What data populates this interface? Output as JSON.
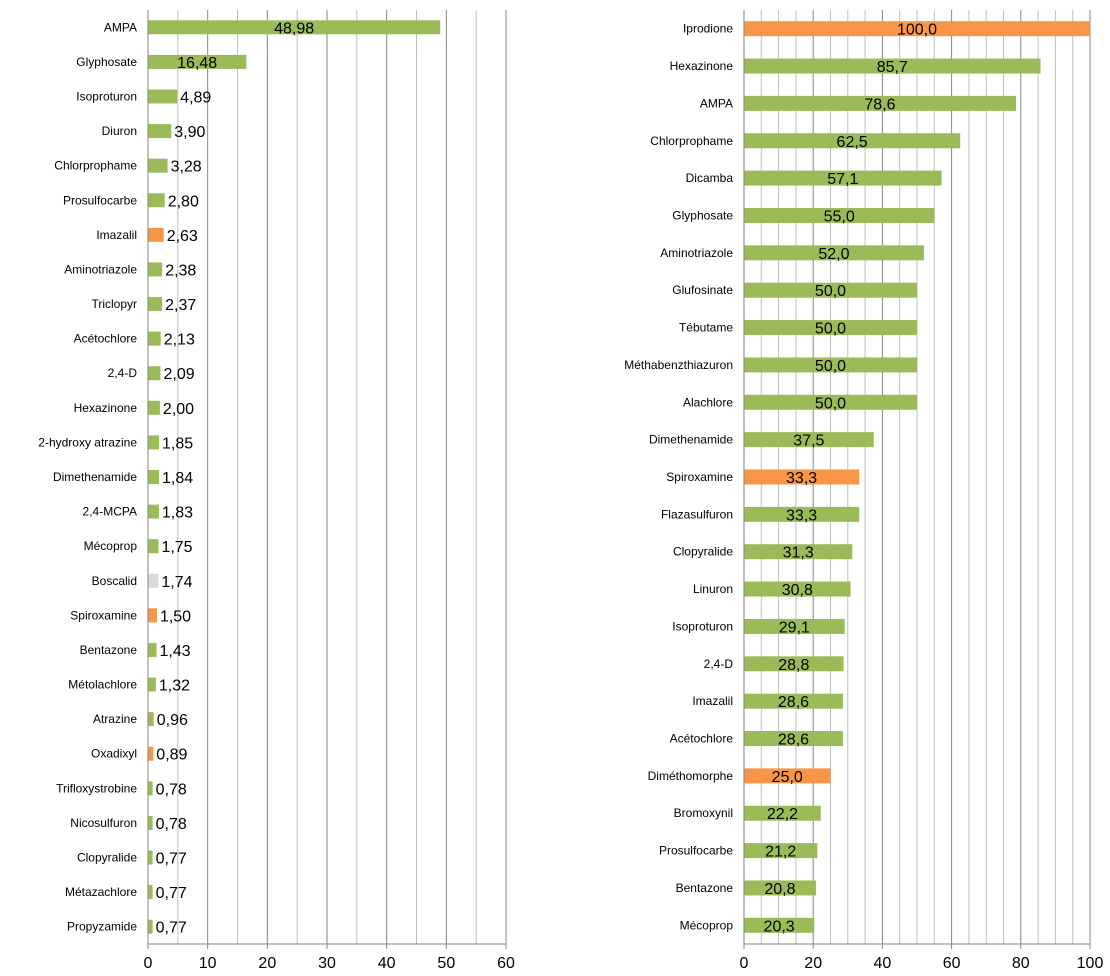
{
  "chart_data": [
    {
      "type": "bar",
      "orientation": "horizontal",
      "xlim": [
        0,
        60
      ],
      "ticks": [
        0,
        10,
        20,
        30,
        40,
        50,
        60
      ],
      "gridlines": "vertical",
      "colors": {
        "default": "#9BBB59",
        "highlight": "#F79646",
        "grey": "#D9D9D9"
      },
      "categories": [
        "AMPA",
        "Glyphosate",
        "Isoproturon",
        "Diuron",
        "Chlorprophame",
        "Prosulfocarbe",
        "Imazalil",
        "Aminotriazole",
        "Triclopyr",
        "Acétochlore",
        "2,4-D",
        "Hexazinone",
        "2-hydroxy atrazine",
        "Dimethenamide",
        "2,4-MCPA",
        "Mécoprop",
        "Boscalid",
        "Spiroxamine",
        "Bentazone",
        "Métolachlore",
        "Atrazine",
        "Oxadixyl",
        "Trifloxystrobine",
        "Nicosulfuron",
        "Clopyralide",
        "Métazachlore",
        "Propyzamide"
      ],
      "values": [
        48.98,
        16.48,
        4.89,
        3.9,
        3.28,
        2.8,
        2.63,
        2.38,
        2.37,
        2.13,
        2.09,
        2.0,
        1.85,
        1.84,
        1.83,
        1.75,
        1.74,
        1.5,
        1.43,
        1.32,
        0.96,
        0.89,
        0.78,
        0.78,
        0.77,
        0.77,
        0.77
      ],
      "labels": [
        "48,98",
        "16,48",
        "4,89",
        "3,90",
        "3,28",
        "2,80",
        "2,63",
        "2,38",
        "2,37",
        "2,13",
        "2,09",
        "2,00",
        "1,85",
        "1,84",
        "1,83",
        "1,75",
        "1,74",
        "1,50",
        "1,43",
        "1,32",
        "0,96",
        "0,89",
        "0,78",
        "0,78",
        "0,77",
        "0,77",
        "0,77"
      ],
      "bar_colors": [
        "default",
        "default",
        "default",
        "default",
        "default",
        "default",
        "highlight",
        "default",
        "default",
        "default",
        "default",
        "default",
        "default",
        "default",
        "default",
        "default",
        "grey",
        "highlight",
        "default",
        "default",
        "default",
        "highlight",
        "default",
        "default",
        "default",
        "default",
        "default"
      ]
    },
    {
      "type": "bar",
      "orientation": "horizontal",
      "xlim": [
        0,
        100
      ],
      "ticks": [
        0,
        20,
        40,
        60,
        80,
        100
      ],
      "gridlines": "vertical",
      "colors": {
        "default": "#9BBB59",
        "highlight": "#F79646"
      },
      "categories": [
        "Iprodione",
        "Hexazinone",
        "AMPA",
        "Chlorprophame",
        "Dicamba",
        "Glyphosate",
        "Aminotriazole",
        "Glufosinate",
        "Tébutame",
        "Méthabenzthiazuron",
        "Alachlore",
        "Dimethenamide",
        "Spiroxamine",
        "Flazasulfuron",
        "Clopyralide",
        "Linuron",
        "Isoproturon",
        "2,4-D",
        "Imazalil",
        "Acétochlore",
        "Diméthomorphe",
        "Bromoxynil",
        "Prosulfocarbe",
        "Bentazone",
        "Mécoprop"
      ],
      "values": [
        100.0,
        85.7,
        78.6,
        62.5,
        57.1,
        55.0,
        52.0,
        50.0,
        50.0,
        50.0,
        50.0,
        37.5,
        33.3,
        33.3,
        31.3,
        30.8,
        29.1,
        28.8,
        28.6,
        28.6,
        25.0,
        22.2,
        21.2,
        20.8,
        20.3
      ],
      "labels": [
        "100,0",
        "85,7",
        "78,6",
        "62,5",
        "57,1",
        "55,0",
        "52,0",
        "50,0",
        "50,0",
        "50,0",
        "50,0",
        "37,5",
        "33,3",
        "33,3",
        "31,3",
        "30,8",
        "29,1",
        "28,8",
        "28,6",
        "28,6",
        "25,0",
        "22,2",
        "21,2",
        "20,8",
        "20,3"
      ],
      "bar_colors": [
        "highlight",
        "default",
        "default",
        "default",
        "default",
        "default",
        "default",
        "default",
        "default",
        "default",
        "default",
        "default",
        "highlight",
        "default",
        "default",
        "default",
        "default",
        "default",
        "default",
        "default",
        "highlight",
        "default",
        "default",
        "default",
        "default"
      ]
    }
  ]
}
